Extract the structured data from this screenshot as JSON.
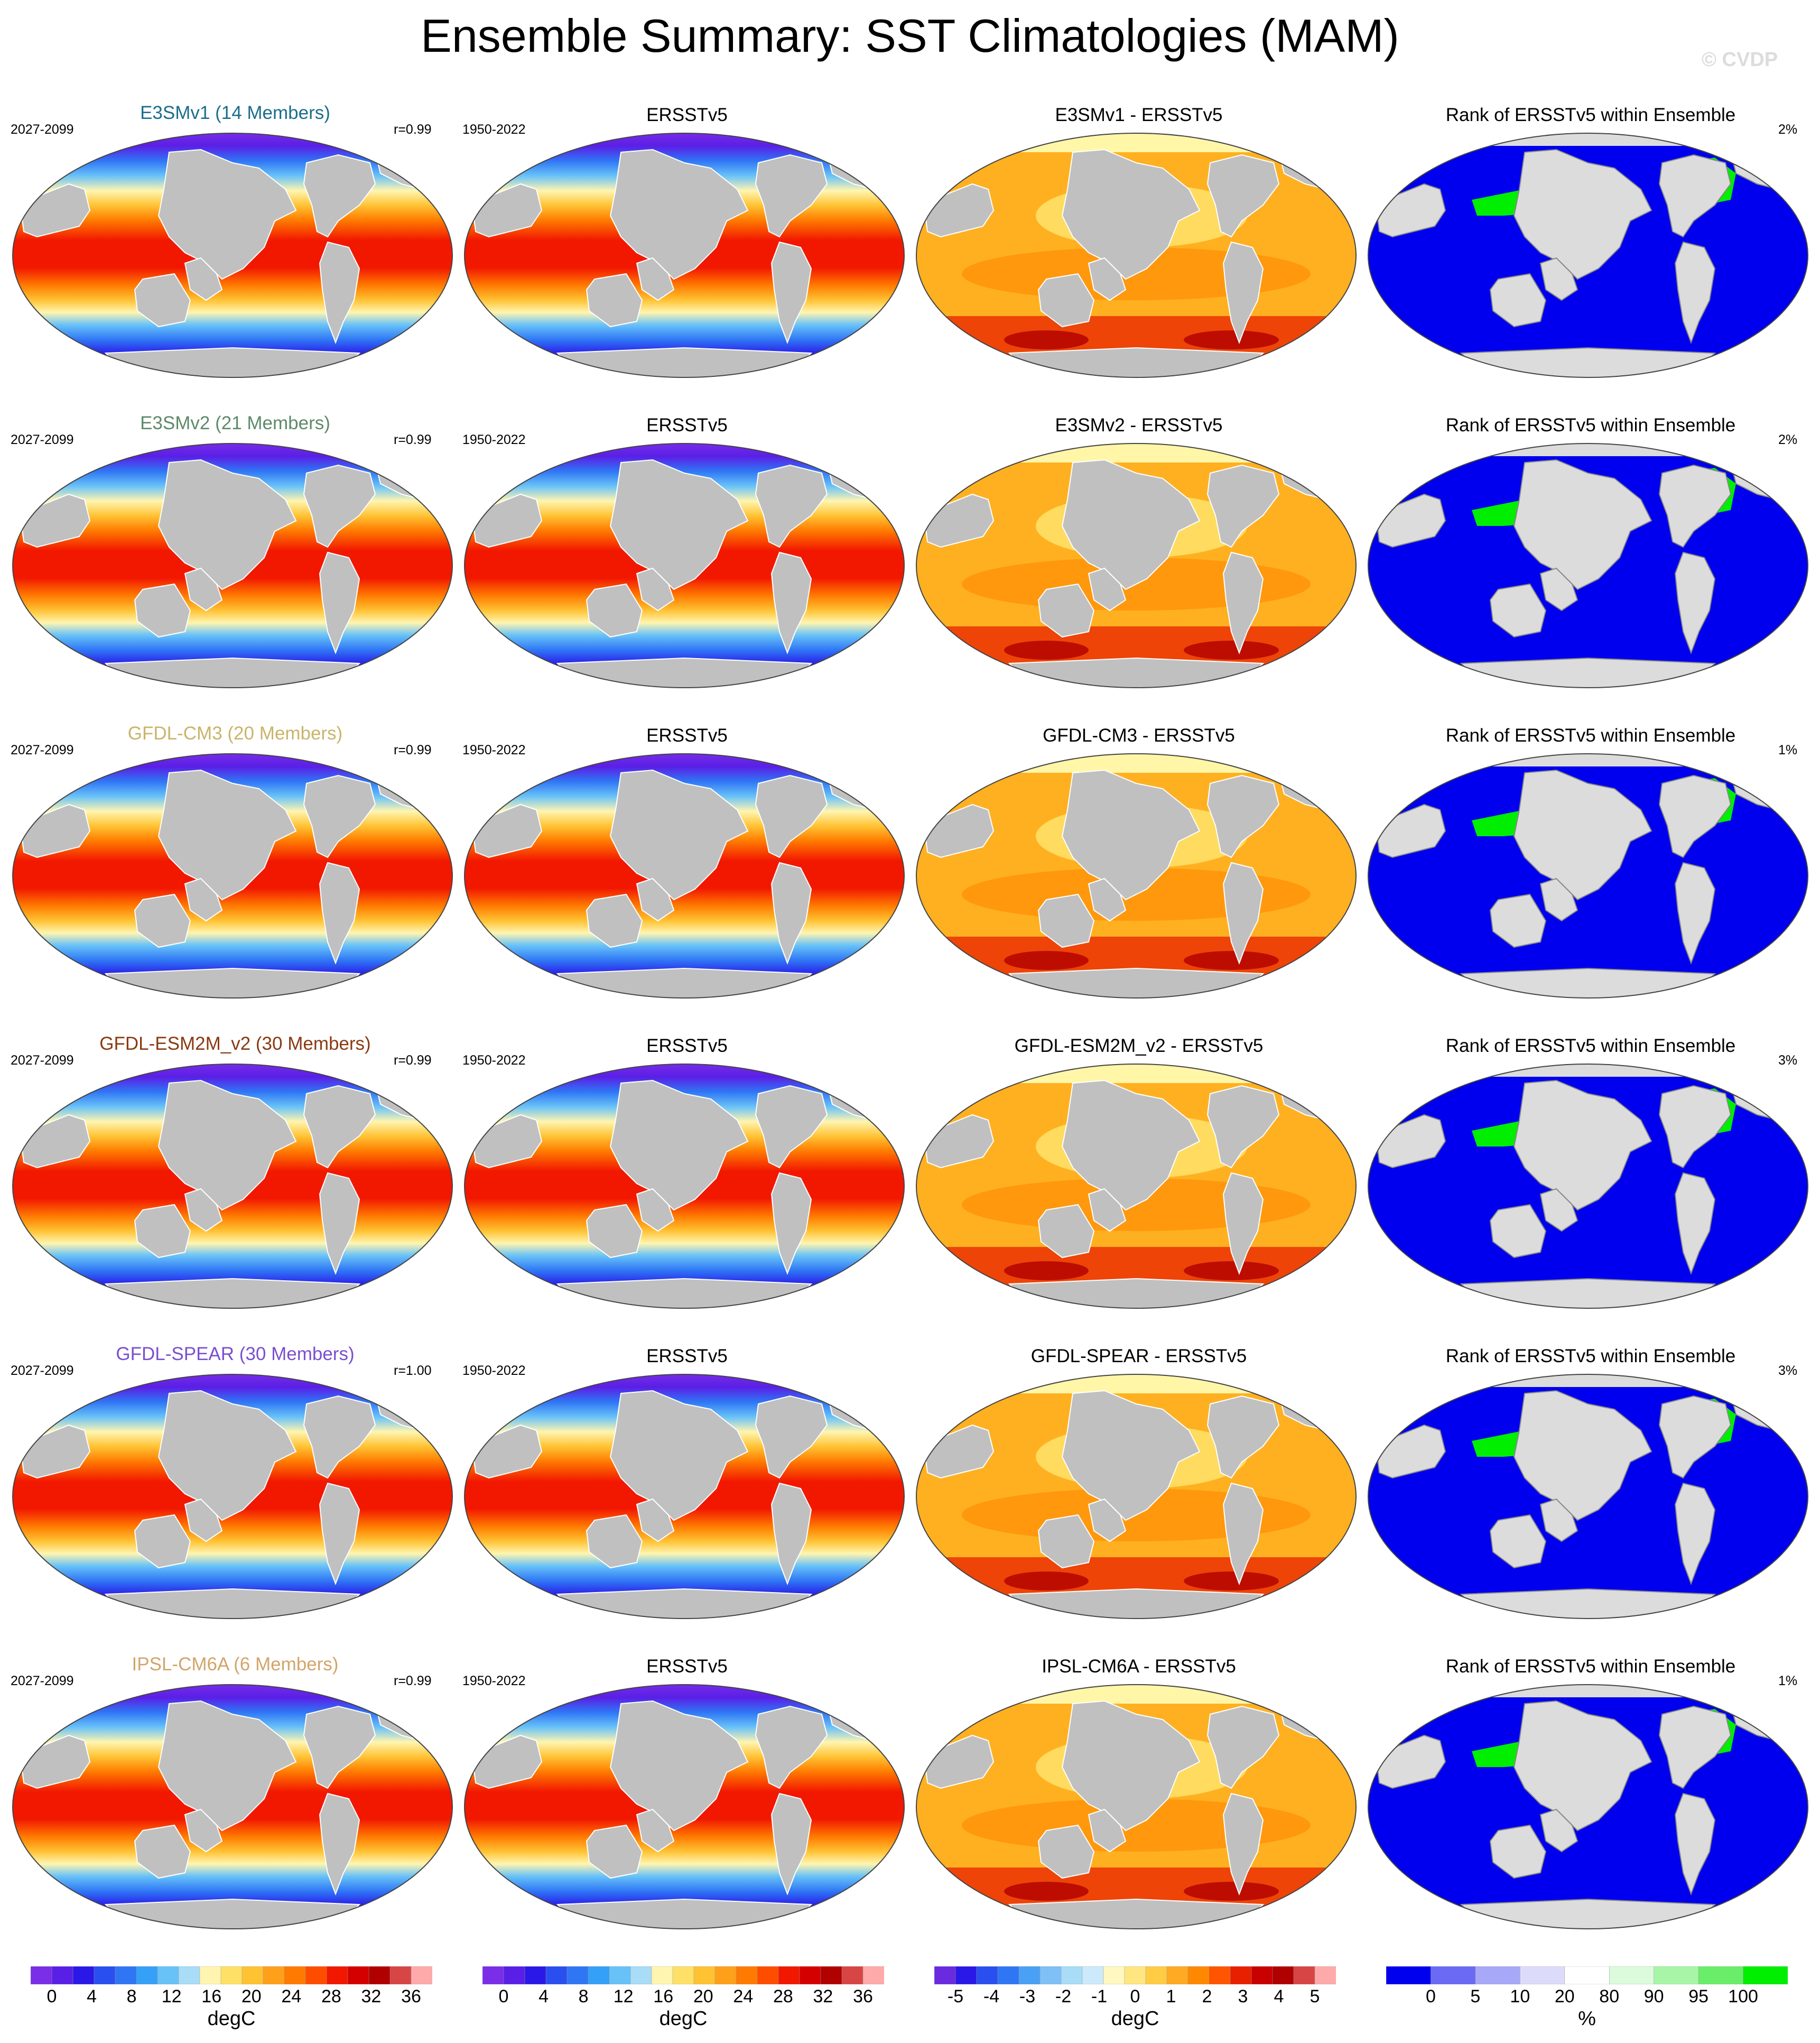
{
  "title": "Ensemble Summary: SST Climatologies (MAM)",
  "watermark": "© CVDP",
  "rows": [
    {
      "model": "E3SMv1 (14 Members)",
      "model_color": "#1b6e8a",
      "model_period": "2027-2099",
      "r": "r=0.99",
      "obs": "ERSSTv5",
      "obs_period": "1950-2022",
      "diff": "E3SMv1 - ERSSTv5",
      "rank_title": "Rank of ERSSTv5 within Ensemble",
      "rank_pct": "2%"
    },
    {
      "model": "E3SMv2 (21 Members)",
      "model_color": "#5e8a6a",
      "model_period": "2027-2099",
      "r": "r=0.99",
      "obs": "ERSSTv5",
      "obs_period": "1950-2022",
      "diff": "E3SMv2 - ERSSTv5",
      "rank_title": "Rank of ERSSTv5 within Ensemble",
      "rank_pct": "2%"
    },
    {
      "model": "GFDL-CM3 (20 Members)",
      "model_color": "#c9b46a",
      "model_period": "2027-2099",
      "r": "r=0.99",
      "obs": "ERSSTv5",
      "obs_period": "1950-2022",
      "diff": "GFDL-CM3 - ERSSTv5",
      "rank_title": "Rank of ERSSTv5 within Ensemble",
      "rank_pct": "1%"
    },
    {
      "model": "GFDL-ESM2M_v2 (30 Members)",
      "model_color": "#8a3a12",
      "model_period": "2027-2099",
      "r": "r=0.99",
      "obs": "ERSSTv5",
      "obs_period": "1950-2022",
      "diff": "GFDL-ESM2M_v2 - ERSSTv5",
      "rank_title": "Rank of ERSSTv5 within Ensemble",
      "rank_pct": "3%"
    },
    {
      "model": "GFDL-SPEAR (30 Members)",
      "model_color": "#7a4fcf",
      "model_period": "2027-2099",
      "r": "r=1.00",
      "obs": "ERSSTv5",
      "obs_period": "1950-2022",
      "diff": "GFDL-SPEAR - ERSSTv5",
      "rank_title": "Rank of ERSSTv5 within Ensemble",
      "rank_pct": "3%"
    },
    {
      "model": "IPSL-CM6A (6 Members)",
      "model_color": "#d2a56a",
      "model_period": "2027-2099",
      "r": "r=0.99",
      "obs": "ERSSTv5",
      "obs_period": "1950-2022",
      "diff": "IPSL-CM6A - ERSSTv5",
      "rank_title": "Rank of ERSSTv5 within Ensemble",
      "rank_pct": "1%"
    }
  ],
  "colorbars": [
    {
      "unit": "degC",
      "ticks": [
        "0",
        "4",
        "8",
        "12",
        "16",
        "20",
        "24",
        "28",
        "32",
        "36"
      ],
      "colors": [
        "#7b2ee8",
        "#5a1fe6",
        "#2a18e8",
        "#2a4ff0",
        "#2f76f5",
        "#35a0f7",
        "#68c2f8",
        "#a8dcf7",
        "#fff5b0",
        "#ffe066",
        "#ffc233",
        "#ffa01a",
        "#ff7a00",
        "#ff4d00",
        "#f21800",
        "#d40000",
        "#b00000",
        "#d84545",
        "#ffaaaa"
      ]
    },
    {
      "unit": "degC",
      "ticks": [
        "0",
        "4",
        "8",
        "12",
        "16",
        "20",
        "24",
        "28",
        "32",
        "36"
      ],
      "colors": [
        "#7b2ee8",
        "#5a1fe6",
        "#2a18e8",
        "#2a4ff0",
        "#2f76f5",
        "#35a0f7",
        "#68c2f8",
        "#a8dcf7",
        "#fff5b0",
        "#ffe066",
        "#ffc233",
        "#ffa01a",
        "#ff7a00",
        "#ff4d00",
        "#f21800",
        "#d40000",
        "#b00000",
        "#d84545",
        "#ffaaaa"
      ]
    },
    {
      "unit": "degC",
      "ticks": [
        "-5",
        "-4",
        "-3",
        "-2",
        "-1",
        "0",
        "1",
        "2",
        "3",
        "4",
        "5"
      ],
      "colors": [
        "#6a2ae0",
        "#2a18e8",
        "#2a4ff0",
        "#2f76f5",
        "#4aa0f5",
        "#7fc0f7",
        "#a8dcf7",
        "#cdeafa",
        "#fff8c0",
        "#ffe680",
        "#ffcc44",
        "#ffaa22",
        "#ff8800",
        "#ff5500",
        "#e82000",
        "#c80000",
        "#b00000",
        "#d84545",
        "#ffaaaa"
      ]
    },
    {
      "unit": "%",
      "ticks": [
        "0",
        "5",
        "10",
        "20",
        "80",
        "90",
        "95",
        "100"
      ],
      "colors": [
        "#0000ee",
        "#6a6af5",
        "#a8a8f8",
        "#dcdcfa",
        "#ffffff",
        "#dcfadc",
        "#a8f5a8",
        "#6aee6a",
        "#00ee00"
      ]
    }
  ]
}
